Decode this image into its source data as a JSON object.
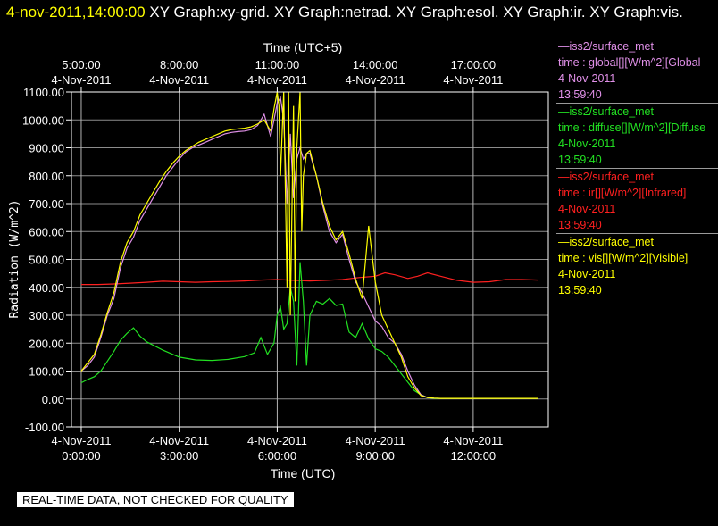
{
  "header": {
    "timestamp": "4-nov-2011,14:00:00",
    "graphs_text": "  XY Graph:xy-grid.  XY Graph:netrad.  XY Graph:esol.  XY Graph:ir.  XY Graph:vis."
  },
  "legend": [
    {
      "station": "—iss2/surface_met",
      "variable": "time : global[][W/m^2][Global",
      "date": "4-Nov-2011",
      "time": "13:59:40",
      "color": "#e090e8"
    },
    {
      "station": "—iss2/surface_met",
      "variable": "time : diffuse[][W/m^2][Diffuse",
      "date": "4-Nov-2011",
      "time": "13:59:40",
      "color": "#22e022"
    },
    {
      "station": "—iss2/surface_met",
      "variable": "time : ir[][W/m^2][Infrared]",
      "date": "4-Nov-2011",
      "time": "13:59:40",
      "color": "#ff2020"
    },
    {
      "station": "—iss2/surface_met",
      "variable": "time : vis[][W/m^2][Visible]",
      "date": "4-Nov-2011",
      "time": "13:59:40",
      "color": "#ffff00"
    }
  ],
  "disclaimer": "REAL-TIME DATA, NOT CHECKED FOR QUALITY",
  "chart_data": {
    "type": "line",
    "xlabel": "Time (UTC)",
    "x2label": "Time (UTC+5)",
    "ylabel": "Radiation (W/m^2)",
    "xlim": [
      -0.3,
      14.3
    ],
    "ylim": [
      -100,
      1100
    ],
    "grid": true,
    "legend_placement": "right",
    "y_ticks": [
      -100,
      0,
      100,
      200,
      300,
      400,
      500,
      600,
      700,
      800,
      900,
      1000,
      1100
    ],
    "y_tick_labels": [
      "-100.00",
      "0.00",
      "100.00",
      "200.00",
      "300.00",
      "400.00",
      "500.00",
      "600.00",
      "700.00",
      "800.00",
      "900.00",
      "1000.00",
      "1100.00"
    ],
    "x_ticks": [
      0,
      3,
      6,
      9,
      12
    ],
    "x_tick_labels": [
      [
        "4-Nov-2011",
        "0:00:00"
      ],
      [
        "4-Nov-2011",
        "3:00:00"
      ],
      [
        "4-Nov-2011",
        "6:00:00"
      ],
      [
        "4-Nov-2011",
        "9:00:00"
      ],
      [
        "4-Nov-2011",
        "12:00:00"
      ]
    ],
    "x2_ticks": [
      0,
      3,
      6,
      9,
      12
    ],
    "x2_tick_labels": [
      [
        "5:00:00",
        "4-Nov-2011"
      ],
      [
        "8:00:00",
        "4-Nov-2011"
      ],
      [
        "11:00:00",
        "4-Nov-2011"
      ],
      [
        "14:00:00",
        "4-Nov-2011"
      ],
      [
        "17:00:00",
        "4-Nov-2011"
      ]
    ],
    "series": [
      {
        "name": "time : ir[][W/m^2][Infrared]",
        "color": "#ff2020",
        "x": [
          0,
          0.5,
          1,
          1.5,
          2,
          2.5,
          3,
          3.5,
          4,
          4.5,
          5,
          5.5,
          6,
          6.5,
          7,
          7.5,
          8,
          8.5,
          9,
          9.3,
          9.6,
          10,
          10.3,
          10.6,
          11,
          11.5,
          12,
          12.5,
          13,
          13.5,
          14
        ],
        "y": [
          410,
          410,
          412,
          415,
          418,
          422,
          420,
          418,
          420,
          421,
          423,
          426,
          428,
          425,
          423,
          425,
          428,
          435,
          440,
          452,
          445,
          432,
          440,
          452,
          440,
          425,
          418,
          420,
          428,
          428,
          426
        ]
      },
      {
        "name": "time : diffuse[][W/m^2][Diffuse",
        "color": "#22e022",
        "x": [
          0,
          0.2,
          0.4,
          0.6,
          0.8,
          1,
          1.2,
          1.4,
          1.6,
          1.8,
          2,
          2.5,
          3,
          3.5,
          4,
          4.5,
          5,
          5.3,
          5.5,
          5.7,
          5.9,
          6,
          6.1,
          6.2,
          6.3,
          6.4,
          6.5,
          6.6,
          6.7,
          6.8,
          6.9,
          7,
          7.2,
          7.4,
          7.6,
          7.8,
          8,
          8.2,
          8.4,
          8.6,
          8.8,
          9,
          9.2,
          9.4,
          9.6,
          9.8,
          10,
          10.2,
          10.4,
          10.6,
          10.8,
          11,
          11.5,
          12,
          13,
          14
        ],
        "y": [
          58,
          70,
          80,
          100,
          135,
          170,
          210,
          235,
          255,
          225,
          205,
          175,
          150,
          140,
          138,
          142,
          152,
          165,
          220,
          160,
          200,
          300,
          330,
          250,
          270,
          400,
          350,
          120,
          490,
          350,
          120,
          300,
          350,
          340,
          360,
          335,
          340,
          240,
          220,
          270,
          215,
          180,
          170,
          150,
          120,
          90,
          60,
          30,
          15,
          5,
          2,
          2,
          2,
          2,
          2,
          2
        ]
      },
      {
        "name": "time : global[][W/m^2][Global",
        "color": "#e090e8",
        "x": [
          0,
          0.2,
          0.4,
          0.6,
          0.8,
          1,
          1.2,
          1.4,
          1.6,
          1.8,
          2,
          2.2,
          2.4,
          2.6,
          2.8,
          3,
          3.2,
          3.4,
          3.6,
          3.8,
          4,
          4.2,
          4.4,
          4.6,
          4.8,
          5,
          5.2,
          5.4,
          5.6,
          5.8,
          5.9,
          6,
          6.1,
          6.2,
          6.3,
          6.4,
          6.5,
          6.6,
          6.7,
          6.8,
          6.9,
          7,
          7.2,
          7.4,
          7.6,
          7.8,
          8,
          8.2,
          8.4,
          8.6,
          8.8,
          9,
          9.2,
          9.4,
          9.6,
          9.8,
          10,
          10.2,
          10.4,
          10.6,
          10.8,
          11,
          11.5,
          12,
          13,
          14
        ],
        "y": [
          100,
          120,
          150,
          220,
          300,
          360,
          470,
          540,
          580,
          640,
          680,
          720,
          760,
          800,
          830,
          860,
          885,
          900,
          910,
          920,
          930,
          940,
          950,
          955,
          958,
          960,
          965,
          980,
          1020,
          940,
          1000,
          1060,
          1080,
          1000,
          700,
          950,
          720,
          860,
          900,
          860,
          880,
          880,
          800,
          690,
          600,
          560,
          590,
          500,
          420,
          380,
          330,
          280,
          260,
          220,
          200,
          160,
          100,
          50,
          15,
          5,
          3,
          2,
          2,
          2,
          2,
          2
        ]
      },
      {
        "name": "time : vis[][W/m^2][Visible]",
        "color": "#ffff00",
        "x": [
          0,
          0.2,
          0.4,
          0.6,
          0.8,
          1,
          1.2,
          1.4,
          1.6,
          1.8,
          2,
          2.2,
          2.4,
          2.6,
          2.8,
          3,
          3.2,
          3.4,
          3.6,
          3.8,
          4,
          4.2,
          4.4,
          4.6,
          4.8,
          5,
          5.2,
          5.4,
          5.6,
          5.8,
          5.9,
          6,
          6.05,
          6.1,
          6.2,
          6.3,
          6.35,
          6.4,
          6.5,
          6.55,
          6.6,
          6.7,
          6.75,
          6.8,
          6.9,
          7,
          7.2,
          7.4,
          7.6,
          7.8,
          8,
          8.2,
          8.4,
          8.6,
          8.8,
          9,
          9.2,
          9.4,
          9.6,
          9.8,
          10,
          10.2,
          10.4,
          10.6,
          10.8,
          11,
          11.5,
          12,
          13,
          14
        ],
        "y": [
          100,
          130,
          160,
          230,
          310,
          380,
          490,
          560,
          600,
          660,
          700,
          740,
          780,
          815,
          845,
          870,
          890,
          905,
          920,
          930,
          940,
          950,
          960,
          965,
          968,
          970,
          975,
          985,
          1000,
          960,
          1040,
          1100,
          1050,
          800,
          1100,
          400,
          1100,
          300,
          1050,
          350,
          900,
          1100,
          600,
          800,
          880,
          890,
          800,
          700,
          620,
          570,
          600,
          520,
          430,
          360,
          620,
          420,
          300,
          250,
          200,
          150,
          80,
          40,
          12,
          5,
          3,
          2,
          2,
          2,
          2,
          2
        ]
      }
    ]
  }
}
